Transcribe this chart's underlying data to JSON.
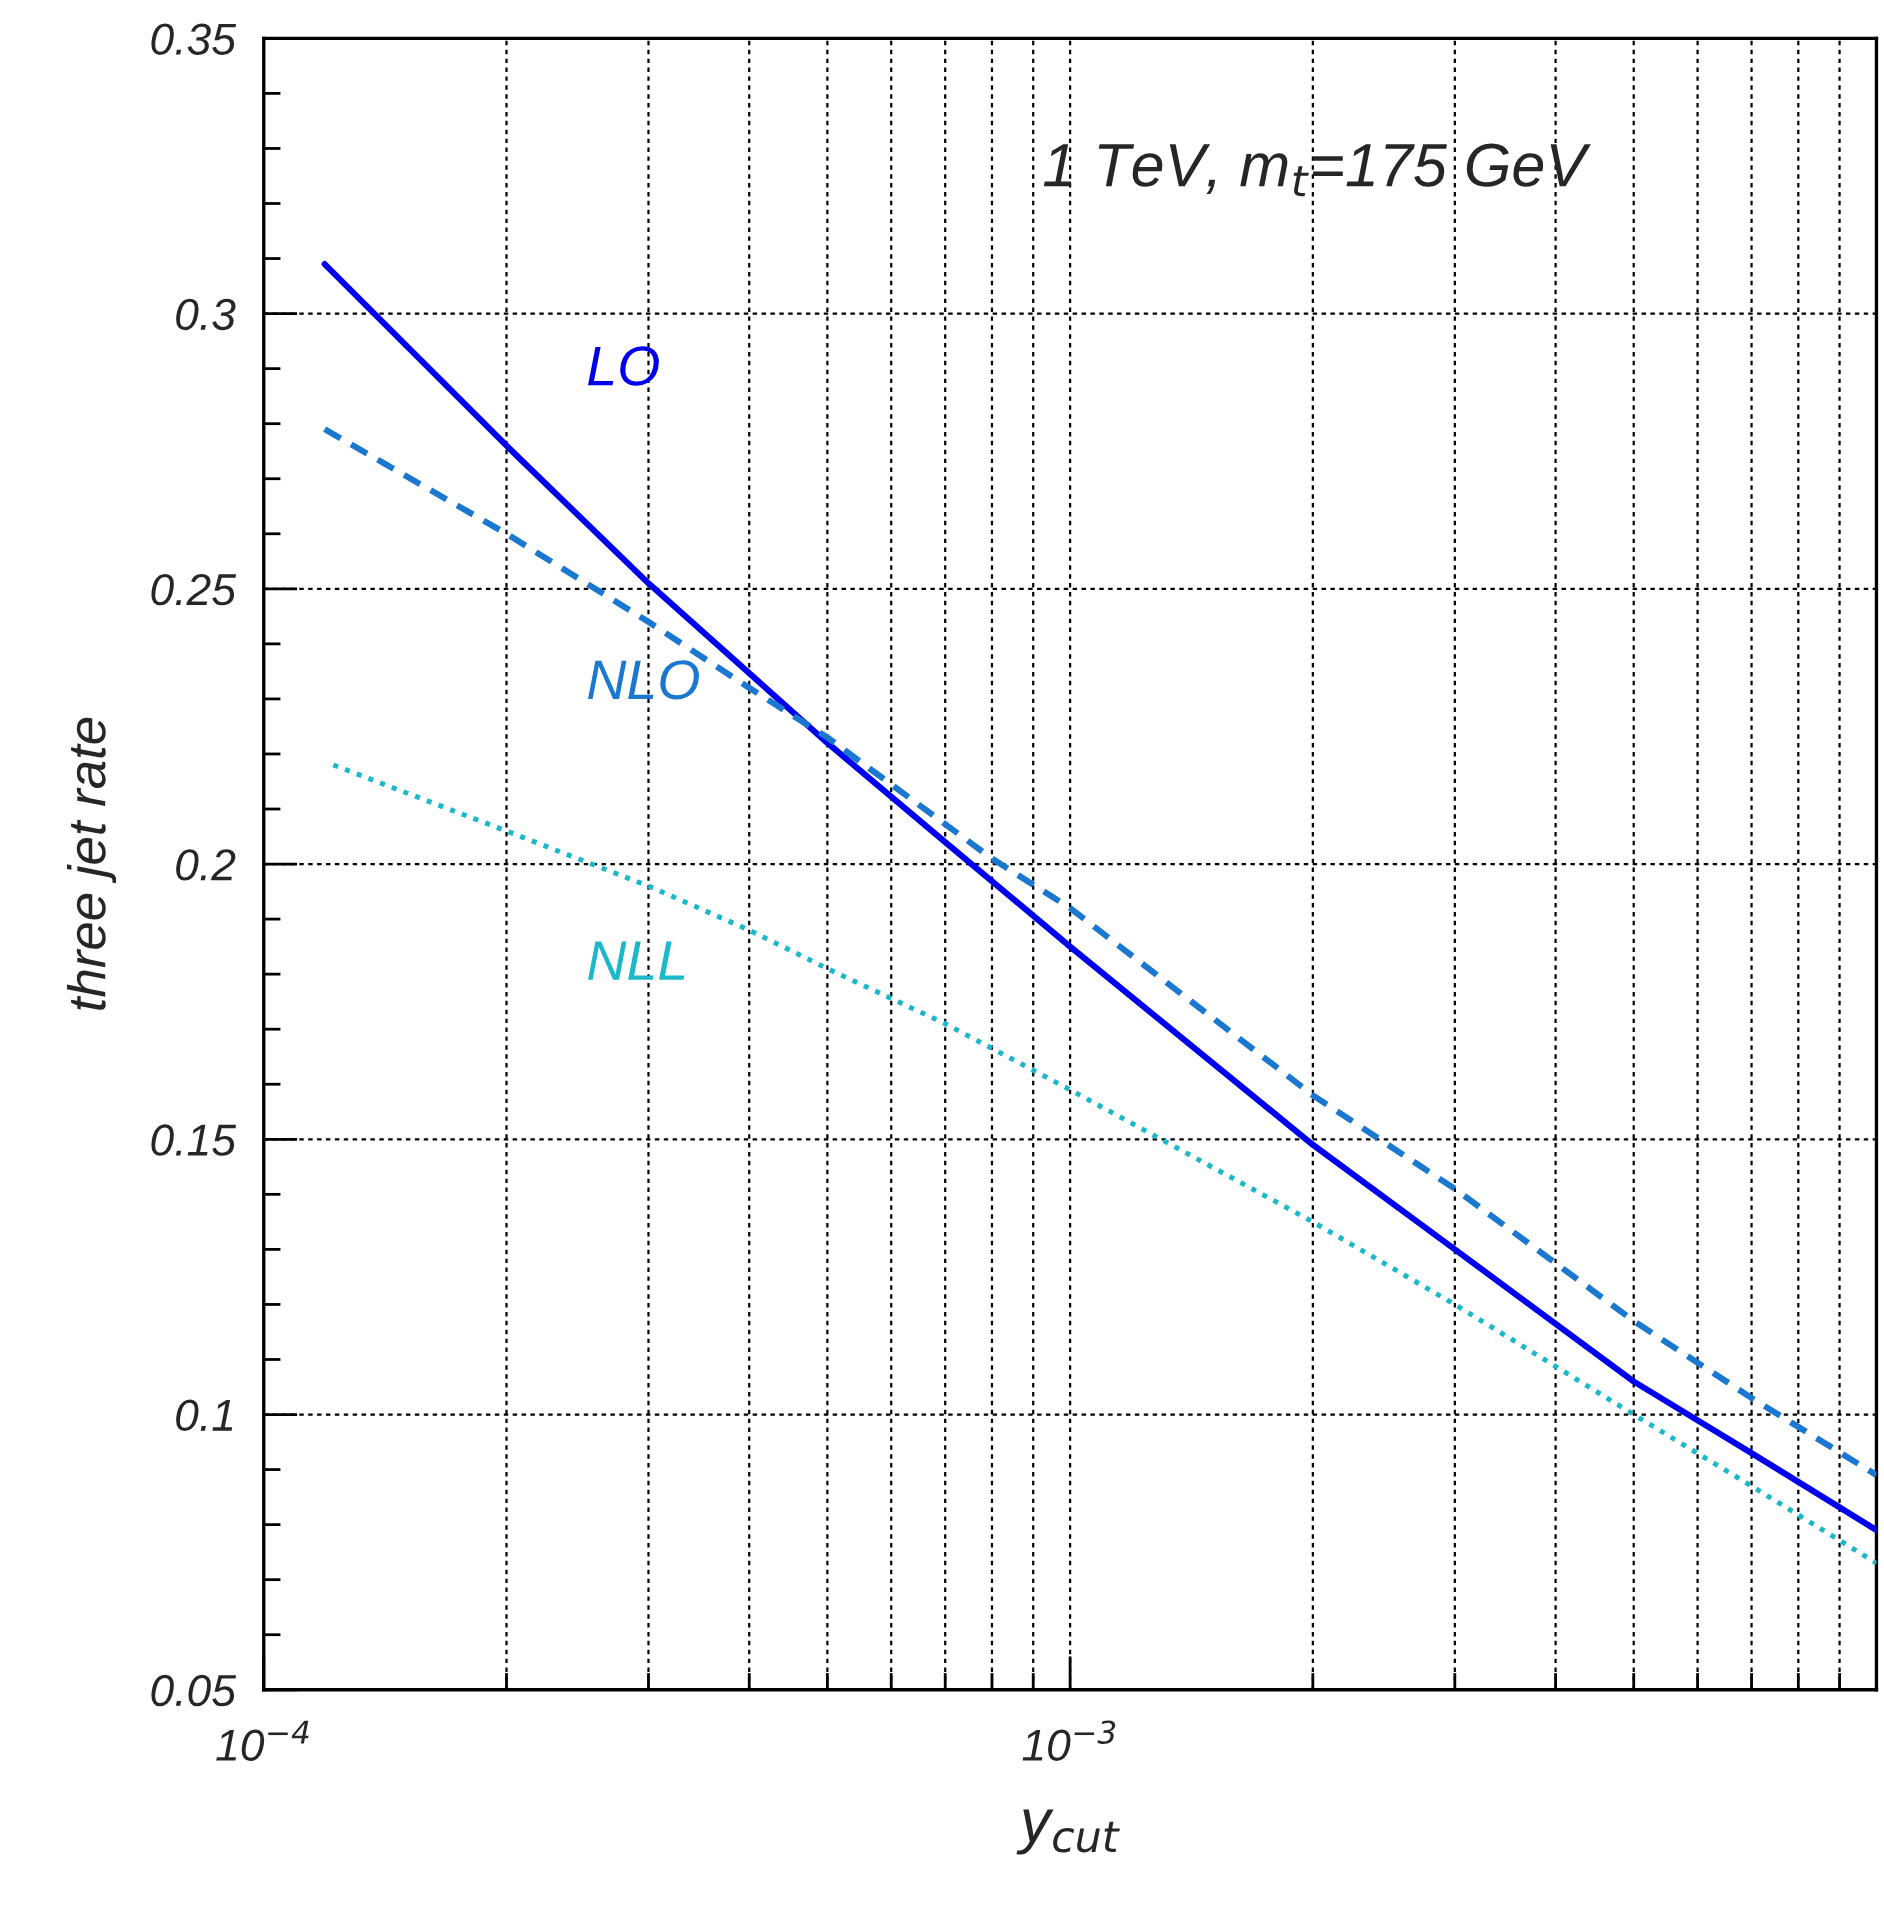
{
  "chart_data": {
    "type": "line",
    "title": "1 TeV, m$_{t}$=175 GeV",
    "xlabel": "y$_{cut}$",
    "ylabel": "three jet rate",
    "log": "x",
    "grid": true,
    "legend": false,
    "xlim": [
      0.0001,
      0.01
    ],
    "ylim": [
      0.05,
      0.35
    ],
    "xticks": [
      {
        "value": 0.0001,
        "label": "10$^{−4}$"
      },
      {
        "value": 0.0002,
        "label": null
      },
      {
        "value": 0.0003,
        "label": null
      },
      {
        "value": 0.0004,
        "label": null
      },
      {
        "value": 0.0005,
        "label": null
      },
      {
        "value": 0.0006,
        "label": null
      },
      {
        "value": 0.0007,
        "label": null
      },
      {
        "value": 0.0008,
        "label": null
      },
      {
        "value": 0.0009,
        "label": null
      },
      {
        "value": 0.001,
        "label": "10$^{−3}$"
      },
      {
        "value": 0.002,
        "label": null
      },
      {
        "value": 0.003,
        "label": null
      },
      {
        "value": 0.004,
        "label": null
      },
      {
        "value": 0.005,
        "label": null
      },
      {
        "value": 0.006,
        "label": null
      },
      {
        "value": 0.007,
        "label": null
      },
      {
        "value": 0.008,
        "label": null
      },
      {
        "value": 0.009,
        "label": null
      }
    ],
    "yticks": [
      0.05,
      {
        "value": 0.06,
        "label": null
      },
      {
        "value": 0.07,
        "label": null
      },
      {
        "value": 0.08,
        "label": null
      },
      {
        "value": 0.09,
        "label": null
      },
      0.1,
      {
        "value": 0.11,
        "label": null
      },
      {
        "value": 0.12,
        "label": null
      },
      {
        "value": 0.13,
        "label": null
      },
      {
        "value": 0.14,
        "label": null
      },
      0.15,
      {
        "value": 0.16,
        "label": null
      },
      {
        "value": 0.17,
        "label": null
      },
      {
        "value": 0.18,
        "label": null
      },
      {
        "value": 0.19,
        "label": null
      },
      0.2,
      {
        "value": 0.21,
        "label": null
      },
      {
        "value": 0.22,
        "label": null
      },
      {
        "value": 0.23,
        "label": null
      },
      {
        "value": 0.24,
        "label": null
      },
      0.25,
      {
        "value": 0.26,
        "label": null
      },
      {
        "value": 0.27,
        "label": null
      },
      {
        "value": 0.28,
        "label": null
      },
      {
        "value": 0.29,
        "label": null
      },
      0.3,
      {
        "value": 0.31,
        "label": null
      },
      {
        "value": 0.32,
        "label": null
      },
      {
        "value": 0.33,
        "label": null
      },
      {
        "value": 0.34,
        "label": null
      },
      0.35
    ],
    "series": [
      {
        "name": "LO",
        "color": "#0000ee",
        "line_style": "solid",
        "x": [
          0.000119,
          0.0002,
          0.0003,
          0.0005,
          0.0007,
          0.001,
          0.002,
          0.003,
          0.005,
          0.007,
          0.01
        ],
        "values": [
          0.309,
          0.276,
          0.251,
          0.222,
          0.204,
          0.185,
          0.149,
          0.13,
          0.106,
          0.093,
          0.079
        ]
      },
      {
        "name": "NLO",
        "color": "#1a78d0",
        "line_style": "dashed",
        "x": [
          0.000119,
          0.0002,
          0.0003,
          0.0004,
          0.0005,
          0.0008,
          0.001,
          0.002,
          0.003,
          0.005,
          0.007,
          0.01
        ],
        "values": [
          0.279,
          0.26,
          0.244,
          0.232,
          0.223,
          0.201,
          0.192,
          0.158,
          0.141,
          0.117,
          0.103,
          0.089
        ]
      },
      {
        "name": "NLL",
        "color": "#1ab8c8",
        "line_style": "dotted",
        "x": [
          0.000122,
          0.0002,
          0.0003,
          0.0004,
          0.0005,
          0.0007,
          0.001,
          0.002,
          0.003,
          0.005,
          0.007,
          0.01
        ],
        "values": [
          0.218,
          0.206,
          0.196,
          0.188,
          0.181,
          0.171,
          0.159,
          0.135,
          0.12,
          0.1,
          0.087,
          0.073
        ]
      }
    ]
  }
}
